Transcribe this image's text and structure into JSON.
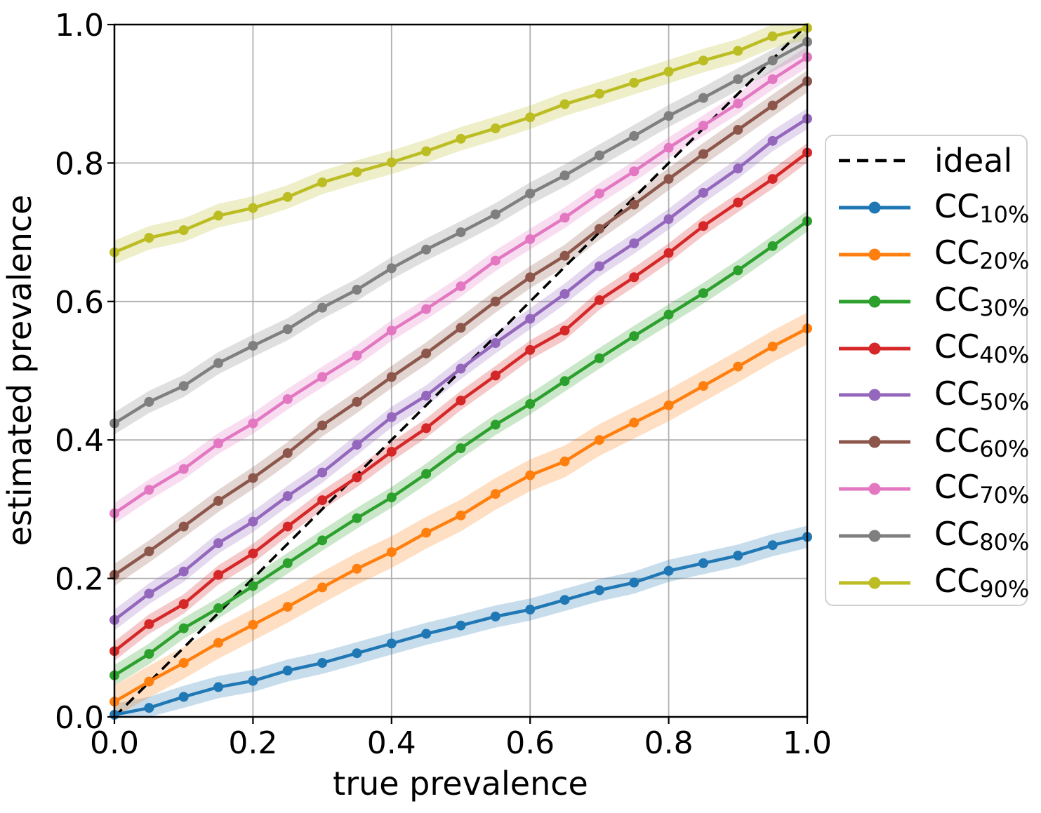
{
  "figure": {
    "background": "#ffffff",
    "grid_color": "#b0b0b0",
    "spine_color": "#000000",
    "band_alpha": 0.25
  },
  "chart_data": {
    "type": "line",
    "title": "",
    "xlabel": "true prevalence",
    "ylabel": "estimated prevalence",
    "xlim": [
      0.0,
      1.0
    ],
    "ylim": [
      0.0,
      1.0
    ],
    "grid": true,
    "legend_position": "center right, outside axes",
    "tick_values": [
      0.0,
      0.2,
      0.4,
      0.6,
      0.8,
      1.0
    ],
    "xticks": [
      "0.0",
      "0.2",
      "0.4",
      "0.6",
      "0.8",
      "1.0"
    ],
    "yticks": [
      "0.0",
      "0.2",
      "0.4",
      "0.6",
      "0.8",
      "1.0"
    ],
    "x": [
      0.0,
      0.05,
      0.1,
      0.15,
      0.2,
      0.25,
      0.3,
      0.35,
      0.4,
      0.45,
      0.5,
      0.55,
      0.6,
      0.65,
      0.7,
      0.75,
      0.8,
      0.85,
      0.9,
      0.95,
      1.0
    ],
    "ideal": {
      "label": "ideal",
      "color": "#000000",
      "style": "dashed",
      "x": [
        0.0,
        1.0
      ],
      "y": [
        0.0,
        1.0
      ]
    },
    "series": [
      {
        "name": "CC",
        "sub": "10%",
        "label": "CC 10%",
        "color": "#1f77b4",
        "band_halfwidth": 0.016,
        "y": [
          0.003,
          0.013,
          0.029,
          0.043,
          0.052,
          0.067,
          0.078,
          0.092,
          0.106,
          0.12,
          0.132,
          0.145,
          0.155,
          0.169,
          0.183,
          0.194,
          0.211,
          0.222,
          0.233,
          0.248,
          0.26
        ]
      },
      {
        "name": "CC",
        "sub": "20%",
        "label": "CC 20%",
        "color": "#ff7f0e",
        "band_halfwidth": 0.023,
        "y": [
          0.022,
          0.051,
          0.078,
          0.107,
          0.133,
          0.159,
          0.187,
          0.214,
          0.238,
          0.266,
          0.291,
          0.322,
          0.349,
          0.369,
          0.4,
          0.425,
          0.45,
          0.478,
          0.506,
          0.535,
          0.561
        ]
      },
      {
        "name": "CC",
        "sub": "30%",
        "label": "CC 30%",
        "color": "#2ca02c",
        "band_halfwidth": 0.015,
        "y": [
          0.06,
          0.091,
          0.128,
          0.157,
          0.189,
          0.222,
          0.255,
          0.287,
          0.317,
          0.351,
          0.388,
          0.422,
          0.452,
          0.485,
          0.518,
          0.55,
          0.581,
          0.612,
          0.645,
          0.68,
          0.716
        ]
      },
      {
        "name": "CC",
        "sub": "40%",
        "label": "CC 40%",
        "color": "#d62728",
        "band_halfwidth": 0.014,
        "y": [
          0.095,
          0.134,
          0.163,
          0.205,
          0.236,
          0.275,
          0.313,
          0.346,
          0.383,
          0.417,
          0.457,
          0.493,
          0.53,
          0.558,
          0.602,
          0.635,
          0.67,
          0.709,
          0.743,
          0.777,
          0.815
        ]
      },
      {
        "name": "CC",
        "sub": "50%",
        "label": "CC 50%",
        "color": "#9467bd",
        "band_halfwidth": 0.015,
        "y": [
          0.14,
          0.178,
          0.21,
          0.251,
          0.282,
          0.319,
          0.353,
          0.393,
          0.433,
          0.464,
          0.503,
          0.54,
          0.575,
          0.611,
          0.651,
          0.684,
          0.719,
          0.757,
          0.792,
          0.832,
          0.864
        ]
      },
      {
        "name": "CC",
        "sub": "60%",
        "label": "CC 60%",
        "color": "#8c564b",
        "band_halfwidth": 0.016,
        "y": [
          0.205,
          0.239,
          0.275,
          0.312,
          0.345,
          0.381,
          0.421,
          0.455,
          0.491,
          0.525,
          0.562,
          0.6,
          0.635,
          0.666,
          0.705,
          0.74,
          0.777,
          0.813,
          0.848,
          0.883,
          0.918
        ]
      },
      {
        "name": "CC",
        "sub": "70%",
        "label": "CC 70%",
        "color": "#e377c2",
        "band_halfwidth": 0.015,
        "y": [
          0.294,
          0.328,
          0.358,
          0.395,
          0.424,
          0.459,
          0.491,
          0.522,
          0.558,
          0.589,
          0.622,
          0.659,
          0.69,
          0.721,
          0.756,
          0.788,
          0.822,
          0.854,
          0.886,
          0.921,
          0.953
        ]
      },
      {
        "name": "CC",
        "sub": "80%",
        "label": "CC 80%",
        "color": "#7f7f7f",
        "band_halfwidth": 0.016,
        "y": [
          0.424,
          0.455,
          0.478,
          0.511,
          0.536,
          0.56,
          0.591,
          0.617,
          0.648,
          0.675,
          0.7,
          0.726,
          0.756,
          0.782,
          0.811,
          0.839,
          0.868,
          0.894,
          0.921,
          0.948,
          0.975
        ]
      },
      {
        "name": "CC",
        "sub": "90%",
        "label": "CC 90%",
        "color": "#bcbd22",
        "band_halfwidth": 0.017,
        "y": [
          0.671,
          0.692,
          0.703,
          0.724,
          0.735,
          0.751,
          0.772,
          0.787,
          0.801,
          0.817,
          0.835,
          0.85,
          0.866,
          0.885,
          0.9,
          0.916,
          0.932,
          0.948,
          0.962,
          0.983,
          0.995
        ]
      }
    ]
  }
}
